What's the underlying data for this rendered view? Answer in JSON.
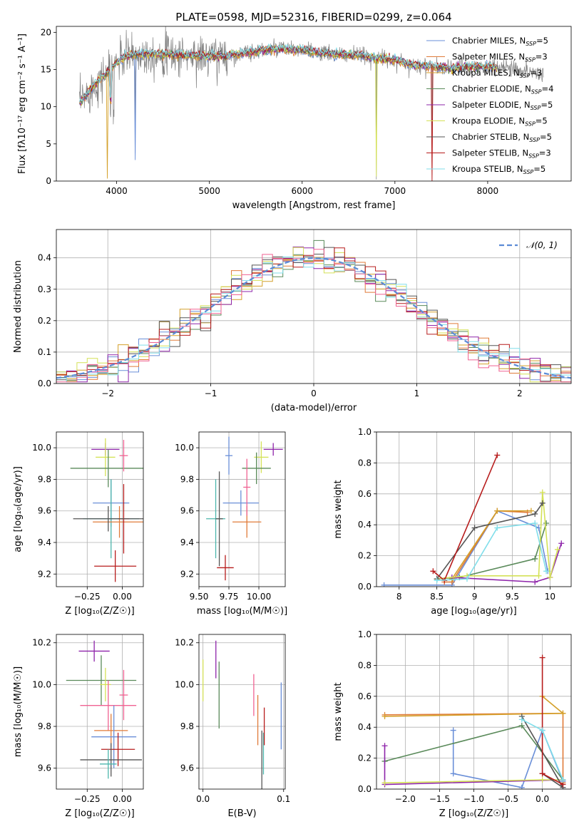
{
  "colors": [
    "#6a8fd8",
    "#e07b39",
    "#d4a02a",
    "#5a8a5a",
    "#8e24aa",
    "#d4e157",
    "#555555",
    "#b71c1c",
    "#80deea",
    "#f06292",
    "#4db6ac"
  ],
  "chart_data": [
    {
      "type": "line",
      "id": "spectrum",
      "title": "PLATE=0598, MJD=52316, FIBERID=0299, z=0.064",
      "xlabel": "wavelength [Angstrom, rest frame]",
      "ylabel": "Flux [fλ10⁻¹⁷ erg cm⁻² s⁻¹ A⁻¹]",
      "xlim": [
        3350,
        8900
      ],
      "ylim": [
        0,
        20.8
      ],
      "xticks": [
        4000,
        5000,
        6000,
        7000,
        8000
      ],
      "yticks": [
        0,
        5,
        10,
        15,
        20
      ],
      "grid": false,
      "legend_position": "top-right",
      "continuum": {
        "x": [
          3600,
          3700,
          3800,
          3900,
          4000,
          4100,
          4200,
          4400,
          4600,
          4800,
          5000,
          5200,
          5400,
          5600,
          5800,
          6000,
          6200,
          6400,
          6600,
          6800,
          7000,
          7200,
          7400,
          7600,
          7800,
          8000,
          8200,
          8400,
          8600
        ],
        "y": [
          10.5,
          12.0,
          13.5,
          14.5,
          16.0,
          16.8,
          17.0,
          17.1,
          17.0,
          16.9,
          16.7,
          16.9,
          17.2,
          17.6,
          17.8,
          17.6,
          17.2,
          17.0,
          16.9,
          16.6,
          16.2,
          15.6,
          15.4,
          15.2,
          15.3,
          15.4,
          15.3,
          14.8,
          14.4
        ]
      },
      "series": [
        {
          "name": "Chabrier MILES, N<sub>SSP</sub>=5",
          "label_main": "Chabrier MILES, N",
          "label_sub": "SSP",
          "label_tail": "=5",
          "color": "#6a8fd8"
        },
        {
          "name": "Salpeter MILES",
          "label_main": "Salpeter MILES, N",
          "label_sub": "SSP",
          "label_tail": "=3",
          "color": "#e07b39"
        },
        {
          "name": "Kroupa MILES",
          "label_main": "Kroupa MILES, N",
          "label_sub": "SSP",
          "label_tail": "=3",
          "color": "#d4a02a"
        },
        {
          "name": "Chabrier ELODIE",
          "label_main": "Chabrier ELODIE, N",
          "label_sub": "SSP",
          "label_tail": "=4",
          "color": "#5a8a5a"
        },
        {
          "name": "Salpeter ELODIE",
          "label_main": "Salpeter ELODIE, N",
          "label_sub": "SSP",
          "label_tail": "=5",
          "color": "#8e24aa"
        },
        {
          "name": "Kroupa ELODIE",
          "label_main": "Kroupa ELODIE, N",
          "label_sub": "SSP",
          "label_tail": "=5",
          "color": "#d4e157"
        },
        {
          "name": "Chabrier STELIB",
          "label_main": "Chabrier STELIB, N",
          "label_sub": "SSP",
          "label_tail": "=5",
          "color": "#555555"
        },
        {
          "name": "Salpeter STELIB",
          "label_main": "Salpeter STELIB, N",
          "label_sub": "SSP",
          "label_tail": "=3",
          "color": "#b71c1c"
        },
        {
          "name": "Kroupa STELIB",
          "label_main": "Kroupa STELIB, N",
          "label_sub": "SSP",
          "label_tail": "=5",
          "color": "#80deea"
        }
      ]
    },
    {
      "type": "line",
      "id": "residuals",
      "xlabel": "(data-model)/error",
      "ylabel": "Normed distribution",
      "xlim": [
        -2.5,
        2.5
      ],
      "ylim": [
        0,
        0.49
      ],
      "xticks": [
        -2,
        -1,
        0,
        1,
        2
      ],
      "yticks": [
        0.0,
        0.1,
        0.2,
        0.3,
        0.4
      ],
      "grid": true,
      "legend_position": "top-right",
      "legend_label": "𝒩(0, 1)",
      "gaussian": {
        "mean": 0,
        "sigma": 1,
        "color": "#5b8bd6"
      },
      "histogram_bin_width": 0.1
    },
    {
      "type": "scatter",
      "id": "age-vs-Z",
      "xlabel": "Z [log₁₀(Z/Z☉)]",
      "ylabel": "age  [log₁₀(age/yr)]",
      "xlim": [
        -0.47,
        0.15
      ],
      "ylim": [
        9.12,
        10.1
      ],
      "xticks": [
        -0.25,
        0.0
      ],
      "xtick_labels": [
        "−0.25",
        "0.00"
      ],
      "yticks": [
        9.2,
        9.4,
        9.6,
        9.8,
        10.0
      ],
      "grid": true,
      "points": [
        {
          "x": -0.12,
          "y": 9.99,
          "xerr": 0.1,
          "yerr": 0.04,
          "color": "#8e24aa"
        },
        {
          "x": -0.12,
          "y": 9.94,
          "xerr": 0.07,
          "yerr": 0.12,
          "color": "#d4e157"
        },
        {
          "x": -0.1,
          "y": 9.87,
          "xerr": 0.27,
          "yerr": 0.12,
          "color": "#5a8a5a"
        },
        {
          "x": -0.08,
          "y": 9.65,
          "xerr": 0.13,
          "yerr": 0.15,
          "color": "#6a8fd8"
        },
        {
          "x": -0.08,
          "y": 9.55,
          "xerr": 0.2,
          "yerr": 0.25,
          "color": "#4db6ac"
        },
        {
          "x": -0.02,
          "y": 9.53,
          "xerr": 0.19,
          "yerr": 0.1,
          "color": "#e07b39"
        },
        {
          "x": 0.01,
          "y": 9.95,
          "xerr": 0.03,
          "yerr": 0.1,
          "color": "#f06292"
        },
        {
          "x": 0.01,
          "y": 9.55,
          "xerr": 0.04,
          "yerr": 0.22,
          "color": "#b71c1c"
        },
        {
          "x": -0.1,
          "y": 9.55,
          "xerr": 0.25,
          "yerr": 0.08,
          "color": "#555555"
        },
        {
          "x": -0.05,
          "y": 9.25,
          "xerr": 0.15,
          "yerr": 0.1,
          "color": "#b71c1c"
        }
      ]
    },
    {
      "type": "scatter",
      "id": "age-vs-mass",
      "xlabel": "mass [log₁₀(M/M☉)]",
      "ylabel": "",
      "xlim": [
        9.5,
        10.22
      ],
      "ylim": [
        9.12,
        10.1
      ],
      "xticks": [
        9.5,
        9.75,
        10.0
      ],
      "xtick_labels": [
        "9.50",
        "9.75",
        "10.00"
      ],
      "yticks": [
        9.2,
        9.4,
        9.6,
        9.8,
        10.0
      ],
      "grid": true,
      "points": [
        {
          "x": 10.12,
          "y": 9.99,
          "xerr": 0.08,
          "yerr": 0.04,
          "color": "#8e24aa"
        },
        {
          "x": 10.02,
          "y": 9.94,
          "xerr": 0.06,
          "yerr": 0.1,
          "color": "#d4e157"
        },
        {
          "x": 9.98,
          "y": 9.87,
          "xerr": 0.12,
          "yerr": 0.1,
          "color": "#5a8a5a"
        },
        {
          "x": 9.75,
          "y": 9.95,
          "xerr": 0.03,
          "yerr": 0.12,
          "color": "#6a8fd8"
        },
        {
          "x": 9.85,
          "y": 9.65,
          "xerr": 0.15,
          "yerr": 0.08,
          "color": "#6a8fd8"
        },
        {
          "x": 9.9,
          "y": 9.53,
          "xerr": 0.12,
          "yerr": 0.1,
          "color": "#e07b39"
        },
        {
          "x": 9.9,
          "y": 9.75,
          "xerr": 0.03,
          "yerr": 0.18,
          "color": "#f06292"
        },
        {
          "x": 9.64,
          "y": 9.55,
          "xerr": 0.08,
          "yerr": 0.25,
          "color": "#4db6ac"
        },
        {
          "x": 9.67,
          "y": 9.55,
          "xerr": 0.03,
          "yerr": 0.3,
          "color": "#555555"
        },
        {
          "x": 9.72,
          "y": 9.24,
          "xerr": 0.07,
          "yerr": 0.08,
          "color": "#b71c1c"
        }
      ]
    },
    {
      "type": "line",
      "id": "mass-weight-vs-age",
      "xlabel": "age  [log₁₀(age/yr)]",
      "ylabel": "mass weight",
      "xlim": [
        7.7,
        10.28
      ],
      "ylim": [
        0,
        1.0
      ],
      "xticks": [
        8.0,
        8.5,
        9.0,
        9.5,
        10.0
      ],
      "yticks": [
        0.0,
        0.2,
        0.4,
        0.6,
        0.8,
        1.0
      ],
      "grid": true,
      "series": [
        {
          "color": "#6a8fd8",
          "points": [
            [
              7.8,
              0.01
            ],
            [
              8.7,
              0.01
            ],
            [
              9.3,
              0.49
            ],
            [
              9.85,
              0.38
            ],
            [
              9.97,
              0.1
            ]
          ]
        },
        {
          "color": "#e07b39",
          "points": [
            [
              8.6,
              0.03
            ],
            [
              8.7,
              0.03
            ],
            [
              9.3,
              0.49
            ],
            [
              9.7,
              0.48
            ]
          ]
        },
        {
          "color": "#d4a02a",
          "points": [
            [
              8.7,
              0.05
            ],
            [
              9.3,
              0.49
            ],
            [
              9.75,
              0.49
            ]
          ]
        },
        {
          "color": "#5a8a5a",
          "points": [
            [
              8.5,
              0.05
            ],
            [
              8.8,
              0.06
            ],
            [
              9.8,
              0.18
            ],
            [
              9.95,
              0.41
            ]
          ]
        },
        {
          "color": "#8e24aa",
          "points": [
            [
              8.7,
              0.06
            ],
            [
              9.8,
              0.03
            ],
            [
              10.0,
              0.06
            ],
            [
              10.15,
              0.28
            ]
          ]
        },
        {
          "color": "#d4e157",
          "points": [
            [
              8.5,
              0.05
            ],
            [
              8.9,
              0.07
            ],
            [
              9.85,
              0.07
            ],
            [
              9.9,
              0.61
            ],
            [
              10.0,
              0.06
            ],
            [
              10.1,
              0.24
            ]
          ]
        },
        {
          "color": "#555555",
          "points": [
            [
              8.5,
              0.05
            ],
            [
              9.0,
              0.38
            ],
            [
              9.8,
              0.47
            ],
            [
              9.9,
              0.54
            ]
          ]
        },
        {
          "color": "#b71c1c",
          "points": [
            [
              8.45,
              0.1
            ],
            [
              8.6,
              0.04
            ],
            [
              9.3,
              0.85
            ]
          ]
        },
        {
          "color": "#80deea",
          "points": [
            [
              8.5,
              0.04
            ],
            [
              8.9,
              0.05
            ],
            [
              9.3,
              0.38
            ],
            [
              9.8,
              0.41
            ],
            [
              9.95,
              0.1
            ]
          ]
        }
      ]
    },
    {
      "type": "scatter",
      "id": "mass-vs-Z",
      "xlabel": "Z [log₁₀(Z/Z☉)]",
      "ylabel": "mass [log₁₀(M/M☉)]",
      "xlim": [
        -0.47,
        0.15
      ],
      "ylim": [
        9.5,
        10.24
      ],
      "xticks": [
        -0.25,
        0.0
      ],
      "xtick_labels": [
        "−0.25",
        "0.00"
      ],
      "yticks": [
        9.6,
        9.8,
        10.0,
        10.2
      ],
      "grid": true,
      "points": [
        {
          "x": -0.2,
          "y": 10.16,
          "xerr": 0.11,
          "yerr": 0.05,
          "color": "#8e24aa"
        },
        {
          "x": -0.15,
          "y": 10.02,
          "xerr": 0.25,
          "yerr": 0.12,
          "color": "#5a8a5a"
        },
        {
          "x": -0.12,
          "y": 10.0,
          "xerr": 0.04,
          "yerr": 0.08,
          "color": "#d4e157"
        },
        {
          "x": -0.1,
          "y": 9.9,
          "xerr": 0.2,
          "yerr": 0.12,
          "color": "#f06292"
        },
        {
          "x": -0.08,
          "y": 9.78,
          "xerr": 0.12,
          "yerr": 0.08,
          "color": "#e07b39"
        },
        {
          "x": -0.06,
          "y": 9.75,
          "xerr": 0.16,
          "yerr": 0.15,
          "color": "#6a8fd8"
        },
        {
          "x": -0.03,
          "y": 9.69,
          "xerr": 0.12,
          "yerr": 0.08,
          "color": "#b71c1c"
        },
        {
          "x": -0.08,
          "y": 9.64,
          "xerr": 0.22,
          "yerr": 0.08,
          "color": "#555555"
        },
        {
          "x": -0.1,
          "y": 9.62,
          "xerr": 0.06,
          "yerr": 0.07,
          "color": "#4db6ac"
        },
        {
          "x": 0.01,
          "y": 9.95,
          "xerr": 0.03,
          "yerr": 0.12,
          "color": "#f06292"
        }
      ]
    },
    {
      "type": "scatter",
      "id": "mass-vs-EBV",
      "xlabel": "E(B-V)",
      "ylabel": "",
      "xlim": [
        -0.005,
        0.102
      ],
      "ylim": [
        9.5,
        10.24
      ],
      "xticks": [
        0.0,
        0.1
      ],
      "xtick_labels": [
        "0.0",
        "0.1"
      ],
      "yticks": [
        9.6,
        9.8,
        10.0,
        10.2
      ],
      "grid": true,
      "points": [
        {
          "x": 0.0,
          "y": 10.02,
          "xerr": 0,
          "yerr": 0.1,
          "color": "#d4e157"
        },
        {
          "x": 0.016,
          "y": 10.12,
          "xerr": 0,
          "yerr": 0.09,
          "color": "#8e24aa"
        },
        {
          "x": 0.02,
          "y": 9.95,
          "xerr": 0,
          "yerr": 0.16,
          "color": "#5a8a5a"
        },
        {
          "x": 0.063,
          "y": 9.95,
          "xerr": 0,
          "yerr": 0.1,
          "color": "#f06292"
        },
        {
          "x": 0.068,
          "y": 9.83,
          "xerr": 0,
          "yerr": 0.12,
          "color": "#e07b39"
        },
        {
          "x": 0.073,
          "y": 9.6,
          "xerr": 0,
          "yerr": 0.18,
          "color": "#555555"
        },
        {
          "x": 0.075,
          "y": 9.67,
          "xerr": 0,
          "yerr": 0.1,
          "color": "#4db6ac"
        },
        {
          "x": 0.076,
          "y": 9.8,
          "xerr": 0,
          "yerr": 0.09,
          "color": "#b71c1c"
        },
        {
          "x": 0.097,
          "y": 9.85,
          "xerr": 0,
          "yerr": 0.16,
          "color": "#6a8fd8"
        }
      ]
    },
    {
      "type": "line",
      "id": "mass-weight-vs-Z",
      "xlabel": "Z [log₁₀(Z/Z☉)]",
      "ylabel": "mass weight",
      "xlim": [
        -2.42,
        0.42
      ],
      "ylim": [
        0,
        1.0
      ],
      "xticks": [
        -2.0,
        -1.5,
        -1.0,
        -0.5,
        0.0
      ],
      "xtick_labels": [
        "−2.0",
        "−1.5",
        "−1.0",
        "−0.5",
        "0.0"
      ],
      "yticks": [
        0.0,
        0.2,
        0.4,
        0.6,
        0.8,
        1.0
      ],
      "grid": true,
      "series": [
        {
          "color": "#6a8fd8",
          "points": [
            [
              -1.3,
              0.38
            ],
            [
              -1.3,
              0.1
            ],
            [
              -0.3,
              0.01
            ],
            [
              0.0,
              0.38
            ],
            [
              0.3,
              0.05
            ]
          ]
        },
        {
          "color": "#e07b39",
          "points": [
            [
              -2.3,
              0.48
            ],
            [
              0.3,
              0.49
            ],
            [
              0.3,
              0.04
            ]
          ]
        },
        {
          "color": "#d4a02a",
          "points": [
            [
              -2.3,
              0.47
            ],
            [
              0.3,
              0.49
            ],
            [
              0.0,
              0.6
            ]
          ]
        },
        {
          "color": "#5a8a5a",
          "points": [
            [
              -2.3,
              0.18
            ],
            [
              -0.3,
              0.41
            ],
            [
              0.3,
              0.06
            ]
          ]
        },
        {
          "color": "#8e24aa",
          "points": [
            [
              -2.3,
              0.28
            ],
            [
              -2.3,
              0.03
            ],
            [
              0.3,
              0.06
            ]
          ]
        },
        {
          "color": "#d4e157",
          "points": [
            [
              -2.3,
              0.04
            ],
            [
              0.0,
              0.06
            ],
            [
              0.3,
              0.06
            ]
          ]
        },
        {
          "color": "#555555",
          "points": [
            [
              -0.3,
              0.47
            ],
            [
              0.3,
              0.01
            ],
            [
              0.0,
              0.1
            ]
          ]
        },
        {
          "color": "#b71c1c",
          "points": [
            [
              0.0,
              0.85
            ],
            [
              0.0,
              0.1
            ],
            [
              0.3,
              0.03
            ]
          ]
        },
        {
          "color": "#80deea",
          "points": [
            [
              -0.3,
              0.45
            ],
            [
              0.0,
              0.38
            ],
            [
              0.3,
              0.06
            ]
          ]
        }
      ]
    }
  ]
}
